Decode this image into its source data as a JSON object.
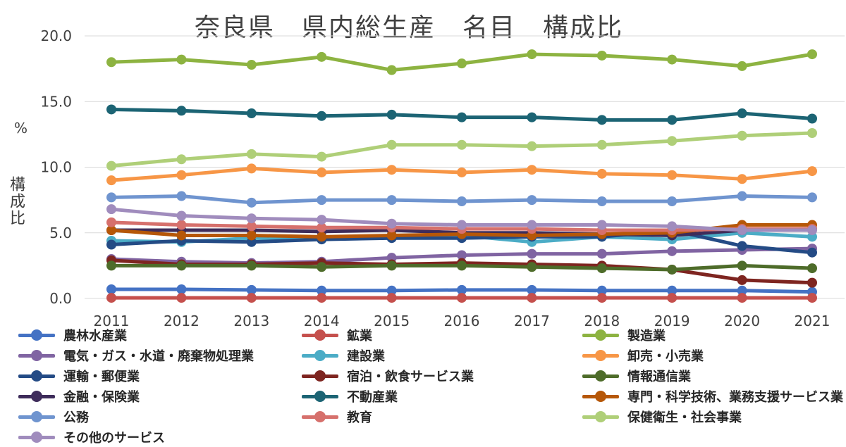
{
  "chart_data": {
    "type": "line",
    "title": "奈良県　県内総生産　名目　構成比",
    "ylabel": "構成比",
    "yunit": "%",
    "xlabel": "",
    "ylim": [
      0,
      20
    ],
    "yticks": [
      "0.0",
      "5.0",
      "10.0",
      "15.0",
      "20.0"
    ],
    "categories": [
      "2011",
      "2012",
      "2013",
      "2014",
      "2015",
      "2016",
      "2017",
      "2018",
      "2019",
      "2020",
      "2021"
    ],
    "series": [
      {
        "name": "農林水産業",
        "color": "#4472c4",
        "values": [
          0.7,
          0.7,
          0.65,
          0.6,
          0.6,
          0.65,
          0.65,
          0.6,
          0.6,
          0.6,
          0.5
        ]
      },
      {
        "name": "鉱業",
        "color": "#c5504d",
        "values": [
          0.05,
          0.05,
          0.05,
          0.05,
          0.05,
          0.05,
          0.05,
          0.05,
          0.05,
          0.05,
          0.05
        ]
      },
      {
        "name": "製造業",
        "color": "#8db341",
        "values": [
          18.0,
          18.2,
          17.8,
          18.4,
          17.4,
          17.9,
          18.6,
          18.5,
          18.2,
          17.7,
          18.6
        ]
      },
      {
        "name": "電気・ガス・水道・廃棄物処理業",
        "color": "#8064a2",
        "values": [
          3.0,
          2.8,
          2.7,
          2.8,
          3.1,
          3.3,
          3.4,
          3.4,
          3.6,
          3.7,
          3.8
        ]
      },
      {
        "name": "建設業",
        "color": "#4bacc6",
        "values": [
          4.4,
          4.3,
          4.6,
          4.5,
          4.7,
          4.8,
          4.3,
          4.7,
          4.5,
          5.0,
          4.7
        ]
      },
      {
        "name": "卸売・小売業",
        "color": "#f79646",
        "values": [
          9.0,
          9.4,
          9.9,
          9.6,
          9.8,
          9.6,
          9.8,
          9.5,
          9.4,
          9.1,
          9.7
        ]
      },
      {
        "name": "運輸・郵便業",
        "color": "#244b85",
        "values": [
          4.1,
          4.4,
          4.3,
          4.5,
          4.6,
          4.6,
          4.7,
          4.7,
          5.2,
          4.0,
          3.5
        ]
      },
      {
        "name": "宿泊・飲食サービス業",
        "color": "#7e2520",
        "values": [
          2.9,
          2.6,
          2.6,
          2.7,
          2.6,
          2.7,
          2.6,
          2.5,
          2.2,
          1.4,
          1.2
        ]
      },
      {
        "name": "情報通信業",
        "color": "#4e6c2a",
        "values": [
          2.5,
          2.5,
          2.5,
          2.4,
          2.5,
          2.5,
          2.4,
          2.3,
          2.2,
          2.5,
          2.3
        ]
      },
      {
        "name": "金融・保険業",
        "color": "#3e2c5a",
        "values": [
          5.2,
          5.2,
          5.2,
          5.1,
          5.2,
          5.0,
          5.0,
          4.9,
          4.8,
          5.2,
          5.3
        ]
      },
      {
        "name": "不動産業",
        "color": "#1c6474",
        "values": [
          14.4,
          14.3,
          14.1,
          13.9,
          14.0,
          13.8,
          13.8,
          13.6,
          13.6,
          14.1,
          13.7
        ]
      },
      {
        "name": "専門・科学技術、業務支援サービス業",
        "color": "#b65708",
        "values": [
          5.2,
          4.8,
          4.8,
          4.7,
          4.8,
          4.9,
          4.8,
          4.9,
          5.0,
          5.6,
          5.6
        ]
      },
      {
        "name": "公務",
        "color": "#6f94cf",
        "values": [
          7.7,
          7.8,
          7.3,
          7.5,
          7.5,
          7.4,
          7.5,
          7.4,
          7.4,
          7.8,
          7.7
        ]
      },
      {
        "name": "教育",
        "color": "#d6706c",
        "values": [
          5.8,
          5.6,
          5.5,
          5.4,
          5.4,
          5.3,
          5.3,
          5.2,
          5.2,
          5.3,
          5.3
        ]
      },
      {
        "name": "保健衛生・社会事業",
        "color": "#afcf78",
        "values": [
          10.1,
          10.6,
          11.0,
          10.8,
          11.7,
          11.7,
          11.6,
          11.7,
          12.0,
          12.4,
          12.6
        ]
      },
      {
        "name": "その他のサービス",
        "color": "#a08cbd",
        "values": [
          6.8,
          6.3,
          6.1,
          6.0,
          5.7,
          5.6,
          5.6,
          5.6,
          5.5,
          5.2,
          5.2
        ]
      }
    ],
    "legend_position": "bottom",
    "grid": true
  }
}
